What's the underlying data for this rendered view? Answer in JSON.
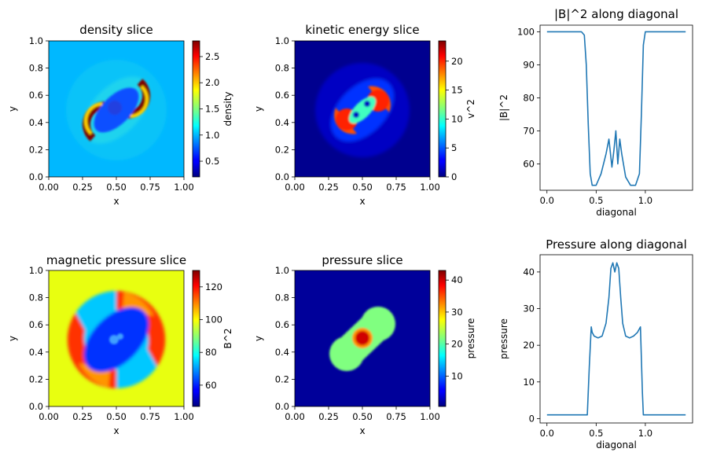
{
  "colors": {
    "line": "#1f77b4",
    "axis": "#000000"
  },
  "chart_data": [
    {
      "type": "heatmap",
      "id": "density",
      "title": "density slice",
      "xlabel": "x",
      "ylabel": "y",
      "colorbar_label": "density",
      "colormap": "jet",
      "xlim": [
        0,
        1
      ],
      "ylim": [
        0,
        1
      ],
      "xticks": [
        "0.00",
        "0.25",
        "0.50",
        "0.75",
        "1.00"
      ],
      "yticks": [
        "0.0",
        "0.2",
        "0.4",
        "0.6",
        "0.8",
        "1.0"
      ],
      "clim": [
        0.2,
        2.8
      ],
      "colorbar_ticks": [
        {
          "value": 0.5,
          "label": "0.5"
        },
        {
          "value": 1.0,
          "label": "1.0"
        },
        {
          "value": 1.5,
          "label": "1.5"
        },
        {
          "value": 2.0,
          "label": "2.0"
        },
        {
          "value": 2.5,
          "label": "2.5"
        }
      ]
    },
    {
      "type": "heatmap",
      "id": "kinetic",
      "title": "kinetic energy slice",
      "xlabel": "x",
      "ylabel": "y",
      "colorbar_label": "v^2",
      "colormap": "jet",
      "xlim": [
        0,
        1
      ],
      "ylim": [
        0,
        1
      ],
      "xticks": [
        "0.00",
        "0.25",
        "0.50",
        "0.75",
        "1.00"
      ],
      "yticks": [
        "0.0",
        "0.2",
        "0.4",
        "0.6",
        "0.8",
        "1.0"
      ],
      "clim": [
        0,
        23.5
      ],
      "colorbar_ticks": [
        {
          "value": 0,
          "label": "0"
        },
        {
          "value": 5,
          "label": "5"
        },
        {
          "value": 10,
          "label": "10"
        },
        {
          "value": 15,
          "label": "15"
        },
        {
          "value": 20,
          "label": "20"
        }
      ]
    },
    {
      "type": "line",
      "id": "b2diag",
      "title": "|B|^2 along diagonal",
      "xlabel": "diagonal",
      "ylabel": "|B|^2",
      "xlim": [
        -0.07,
        1.48
      ],
      "ylim": [
        52,
        102
      ],
      "xticks": [
        {
          "value": 0.0,
          "label": "0.0"
        },
        {
          "value": 0.5,
          "label": "0.5"
        },
        {
          "value": 1.0,
          "label": "1.0"
        }
      ],
      "yticks": [
        {
          "value": 60,
          "label": "60"
        },
        {
          "value": 70,
          "label": "70"
        },
        {
          "value": 80,
          "label": "80"
        },
        {
          "value": 90,
          "label": "90"
        },
        {
          "value": 100,
          "label": "100"
        }
      ],
      "x": [
        0.0,
        0.2,
        0.35,
        0.38,
        0.4,
        0.42,
        0.44,
        0.46,
        0.5,
        0.55,
        0.6,
        0.63,
        0.66,
        0.68,
        0.7,
        0.72,
        0.74,
        0.76,
        0.8,
        0.85,
        0.9,
        0.94,
        0.96,
        0.98,
        1.0,
        1.03,
        1.1,
        1.3,
        1.41
      ],
      "y": [
        100,
        100,
        100,
        99,
        90,
        72,
        57,
        53.5,
        53.5,
        57,
        63,
        67.5,
        59,
        64,
        70,
        60,
        67.5,
        63,
        56,
        53.5,
        53.5,
        57,
        75,
        96,
        100,
        100,
        100,
        100,
        100
      ]
    },
    {
      "type": "heatmap",
      "id": "magpressure",
      "title": "magnetic pressure slice",
      "xlabel": "x",
      "ylabel": "y",
      "colorbar_label": "B^2",
      "colormap": "jet",
      "xlim": [
        0,
        1
      ],
      "ylim": [
        0,
        1
      ],
      "xticks": [
        "0.00",
        "0.25",
        "0.50",
        "0.75",
        "1.00"
      ],
      "yticks": [
        "0.0",
        "0.2",
        "0.4",
        "0.6",
        "0.8",
        "1.0"
      ],
      "clim": [
        47,
        130
      ],
      "colorbar_ticks": [
        {
          "value": 60,
          "label": "60"
        },
        {
          "value": 80,
          "label": "80"
        },
        {
          "value": 100,
          "label": "100"
        },
        {
          "value": 120,
          "label": "120"
        }
      ]
    },
    {
      "type": "heatmap",
      "id": "pressure",
      "title": "pressure slice",
      "xlabel": "x",
      "ylabel": "y",
      "colorbar_label": "pressure",
      "colormap": "jet",
      "xlim": [
        0,
        1
      ],
      "ylim": [
        0,
        1
      ],
      "xticks": [
        "0.00",
        "0.25",
        "0.50",
        "0.75",
        "1.00"
      ],
      "yticks": [
        "0.0",
        "0.2",
        "0.4",
        "0.6",
        "0.8",
        "1.0"
      ],
      "clim": [
        0.5,
        43
      ],
      "colorbar_ticks": [
        {
          "value": 10,
          "label": "10"
        },
        {
          "value": 20,
          "label": "20"
        },
        {
          "value": 30,
          "label": "30"
        },
        {
          "value": 40,
          "label": "40"
        }
      ]
    },
    {
      "type": "line",
      "id": "pdiag",
      "title": "Pressure along diagonal",
      "xlabel": "diagonal",
      "ylabel": "pressure",
      "xlim": [
        -0.07,
        1.48
      ],
      "ylim": [
        -1.2,
        44.7
      ],
      "xticks": [
        {
          "value": 0.0,
          "label": "0.0"
        },
        {
          "value": 0.5,
          "label": "0.5"
        },
        {
          "value": 1.0,
          "label": "1.0"
        }
      ],
      "yticks": [
        {
          "value": 0,
          "label": "0"
        },
        {
          "value": 10,
          "label": "10"
        },
        {
          "value": 20,
          "label": "20"
        },
        {
          "value": 30,
          "label": "30"
        },
        {
          "value": 40,
          "label": "40"
        }
      ],
      "x": [
        0.0,
        0.2,
        0.41,
        0.43,
        0.45,
        0.46,
        0.48,
        0.52,
        0.56,
        0.6,
        0.63,
        0.65,
        0.67,
        0.69,
        0.71,
        0.73,
        0.75,
        0.77,
        0.8,
        0.84,
        0.88,
        0.92,
        0.95,
        0.97,
        0.98,
        1.0,
        1.2,
        1.41
      ],
      "y": [
        1,
        1,
        1,
        14,
        25,
        23.5,
        22.5,
        22,
        22.5,
        26,
        33,
        41,
        42.5,
        40,
        42.5,
        41,
        33,
        26,
        22.5,
        22,
        22.5,
        23.5,
        25,
        7,
        1,
        1,
        1,
        1
      ]
    }
  ]
}
